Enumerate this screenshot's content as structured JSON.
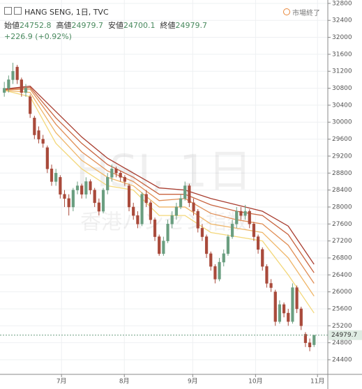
{
  "chart_data": {
    "type": "candlestick",
    "title": "HANG SENG, 1日, TVC",
    "open_label": "始値",
    "high_label": "高値",
    "low_label": "安値",
    "close_label": "終値",
    "change": "+226.9 (+0.92%)",
    "status": "市場終了",
    "watermark": "HSI, 1日",
    "watermark_sub": "香港ハンセン指数",
    "up_color": "#6a9e80",
    "down_color": "#a94a3b",
    "open": [
      30700,
      30800,
      31000,
      31300,
      31000,
      30700,
      30600,
      30100,
      29800,
      29600,
      29400,
      28900,
      28600,
      28700,
      28300,
      28200,
      28000,
      28400,
      28500,
      28300,
      28600,
      28400,
      28100,
      27900,
      28400,
      28700,
      28900,
      28800,
      28700,
      28500,
      28000,
      27800,
      27600,
      28300,
      28100,
      27700,
      27300,
      26900,
      27200,
      27600,
      27800,
      28000,
      28200,
      28500,
      28100,
      27900,
      27500,
      27300,
      26900,
      26600,
      26300,
      26700,
      26900,
      27300,
      27600,
      27900,
      27800,
      27900,
      27600,
      27300,
      27000,
      26600,
      26200,
      26000,
      25300,
      25700,
      25500,
      25300,
      26100,
      25600,
      25000,
      24800,
      24752.8
    ],
    "high": [
      30950,
      31100,
      31400,
      31350,
      31050,
      30900,
      30650,
      30150,
      29900,
      29700,
      29450,
      29000,
      28900,
      28750,
      28400,
      28300,
      28450,
      28600,
      28550,
      28700,
      28650,
      28450,
      28200,
      28450,
      28800,
      29000,
      28950,
      28850,
      28750,
      28550,
      28100,
      27900,
      28350,
      28400,
      28150,
      27750,
      27350,
      27300,
      27700,
      27900,
      28100,
      28300,
      28600,
      28550,
      28200,
      27950,
      27600,
      27350,
      26950,
      26650,
      26800,
      27000,
      27350,
      27700,
      28000,
      28000,
      28050,
      27950,
      27650,
      27350,
      27050,
      26650,
      26300,
      26050,
      25800,
      25750,
      25600,
      26200,
      26150,
      25650,
      25050,
      24900,
      24979.7
    ],
    "low": [
      30600,
      30700,
      30900,
      30900,
      30600,
      30600,
      30100,
      29600,
      29500,
      29400,
      28800,
      28500,
      28500,
      28200,
      28000,
      27800,
      27900,
      28300,
      28200,
      28200,
      28300,
      28000,
      27800,
      27850,
      28300,
      28600,
      28700,
      28600,
      28500,
      27900,
      27700,
      27500,
      27550,
      28000,
      27600,
      27200,
      26850,
      26850,
      27150,
      27500,
      27700,
      27950,
      28150,
      28000,
      27800,
      27400,
      27200,
      26800,
      26500,
      26200,
      26250,
      26600,
      26850,
      27250,
      27500,
      27700,
      27700,
      27500,
      27200,
      26900,
      26500,
      26100,
      26000,
      25200,
      25250,
      25400,
      25200,
      25250,
      25500,
      25100,
      24700,
      24600,
      24700.1
    ],
    "close": [
      30800,
      31000,
      31200,
      31000,
      30700,
      30800,
      30200,
      29700,
      29600,
      29500,
      28900,
      28600,
      28800,
      28300,
      28200,
      28000,
      28400,
      28500,
      28300,
      28600,
      28400,
      28100,
      27900,
      28400,
      28700,
      28900,
      28800,
      28700,
      28600,
      28000,
      27800,
      27600,
      28300,
      28100,
      27700,
      27300,
      26900,
      27200,
      27600,
      27800,
      28000,
      28200,
      28500,
      28100,
      27900,
      27500,
      27300,
      26900,
      26600,
      26300,
      26700,
      26900,
      27300,
      27600,
      27900,
      27800,
      27900,
      27600,
      27300,
      27000,
      26600,
      26200,
      26100,
      25300,
      25700,
      25500,
      25300,
      26100,
      25600,
      25200,
      24800,
      24700,
      24979.7
    ],
    "ribbon_x": [
      0,
      6,
      12,
      18,
      24,
      30,
      36,
      42,
      48,
      54,
      60,
      66,
      72
    ],
    "ribbons": [
      {
        "color": "#f3d77a",
        "values": [
          30750,
          30600,
          29500,
          28900,
          28500,
          28400,
          27800,
          27800,
          27400,
          27300,
          27200,
          26400,
          25500
        ]
      },
      {
        "color": "#efb567",
        "values": [
          30750,
          30700,
          29750,
          29100,
          28700,
          28500,
          28000,
          28000,
          27600,
          27500,
          27400,
          26800,
          25900
        ]
      },
      {
        "color": "#e08e55",
        "values": [
          30760,
          30780,
          29950,
          29300,
          28850,
          28600,
          28150,
          28200,
          27850,
          27700,
          27600,
          27100,
          26200
        ]
      },
      {
        "color": "#c8643f",
        "values": [
          30770,
          30820,
          30100,
          29500,
          29000,
          28700,
          28300,
          28300,
          28050,
          27900,
          27800,
          27350,
          26450
        ]
      },
      {
        "color": "#a83c2e",
        "values": [
          30780,
          30850,
          30250,
          29650,
          29150,
          28800,
          28450,
          28400,
          28200,
          28050,
          27900,
          27550,
          26650
        ]
      }
    ],
    "xlim": [
      -1,
      75.2
    ],
    "xticks": [
      {
        "value": 13.3,
        "label": "7月"
      },
      {
        "value": 27.9,
        "label": "8月"
      },
      {
        "value": 43.8,
        "label": "9月"
      },
      {
        "value": 58.4,
        "label": "10月"
      },
      {
        "value": 72.8,
        "label": "11月"
      }
    ],
    "ylim": [
      24055,
      32880
    ],
    "yticks": [
      24400,
      24800,
      25200,
      25600,
      26000,
      26400,
      26800,
      27200,
      27600,
      28000,
      28400,
      28800,
      29200,
      29600,
      30000,
      30400,
      30800,
      31200,
      31600,
      32000,
      32400,
      32800
    ],
    "grid": true
  }
}
